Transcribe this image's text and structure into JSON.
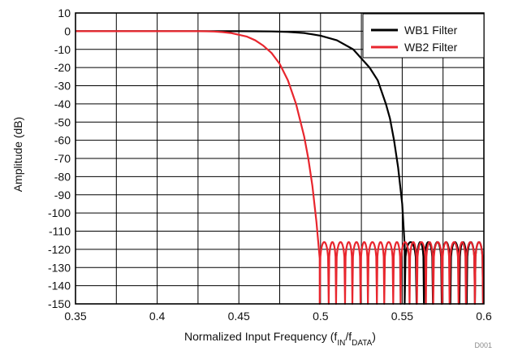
{
  "chart_data": {
    "type": "line",
    "title": "",
    "xlabel": "Normalized Input Frequency (f",
    "xlabel_parts": [
      "Normalized Input Frequency (f",
      "IN",
      "/f",
      "DATA",
      ")"
    ],
    "ylabel": "Amplitude (dB)",
    "xlim": [
      0.35,
      0.6
    ],
    "ylim": [
      -150,
      10
    ],
    "x_ticks": [
      "0.35",
      "0.4",
      "0.45",
      "0.5",
      "0.55",
      "0.6"
    ],
    "x_tick_values": [
      0.35,
      0.4,
      0.45,
      0.5,
      0.55,
      0.6
    ],
    "x_minor_step": 0.025,
    "y_ticks": [
      "10",
      "0",
      "-10",
      "-20",
      "-30",
      "-40",
      "-50",
      "-60",
      "-70",
      "-80",
      "-90",
      "-100",
      "-110",
      "-120",
      "-130",
      "-140",
      "-150"
    ],
    "y_tick_values": [
      10,
      0,
      -10,
      -20,
      -30,
      -40,
      -50,
      -60,
      -70,
      -80,
      -90,
      -100,
      -110,
      -120,
      -130,
      -140,
      -150
    ],
    "grid": true,
    "legend_position": "top-right",
    "series": [
      {
        "name": "WB1 Filter",
        "color": "#000000",
        "passband": [
          [
            0.35,
            0
          ],
          [
            0.45,
            0
          ],
          [
            0.46,
            -0.05
          ],
          [
            0.47,
            -0.15
          ],
          [
            0.48,
            -0.4
          ],
          [
            0.49,
            -1
          ],
          [
            0.5,
            -2.5
          ],
          [
            0.51,
            -5
          ],
          [
            0.52,
            -10
          ],
          [
            0.53,
            -20
          ],
          [
            0.535,
            -27
          ],
          [
            0.54,
            -40
          ],
          [
            0.5425,
            -48
          ],
          [
            0.545,
            -60
          ],
          [
            0.5475,
            -75
          ],
          [
            0.55,
            -95
          ],
          [
            0.5515,
            -118
          ]
        ],
        "stopband_start": 0.5515,
        "stopband_end": 0.6,
        "stopband_peak_db": -116,
        "notch_x": [
          0.5515,
          0.5588,
          0.5633,
          0.5688,
          0.5742,
          0.5795,
          0.585,
          0.5895,
          0.5945,
          0.5995
        ]
      },
      {
        "name": "WB2 Filter",
        "color": "#e8262e",
        "passband": [
          [
            0.35,
            0
          ],
          [
            0.425,
            0
          ],
          [
            0.43,
            -0.05
          ],
          [
            0.435,
            -0.2
          ],
          [
            0.44,
            -0.5
          ],
          [
            0.445,
            -1
          ],
          [
            0.45,
            -2
          ],
          [
            0.455,
            -3
          ],
          [
            0.46,
            -5
          ],
          [
            0.465,
            -8
          ],
          [
            0.47,
            -12
          ],
          [
            0.475,
            -18
          ],
          [
            0.48,
            -27
          ],
          [
            0.485,
            -40
          ],
          [
            0.49,
            -58
          ],
          [
            0.4925,
            -70
          ],
          [
            0.495,
            -85
          ],
          [
            0.4975,
            -105
          ],
          [
            0.4995,
            -125
          ]
        ],
        "stopband_start": 0.4995,
        "stopband_end": 0.6,
        "stopband_peak_db": -116,
        "notch_x": [
          0.4995,
          0.505,
          0.5095,
          0.515,
          0.5195,
          0.5245,
          0.529,
          0.5345,
          0.539,
          0.5445,
          0.549,
          0.5545,
          0.559,
          0.5645,
          0.569,
          0.5745,
          0.579,
          0.5845,
          0.589,
          0.5945,
          0.5995
        ]
      }
    ],
    "footnote": "D001"
  }
}
